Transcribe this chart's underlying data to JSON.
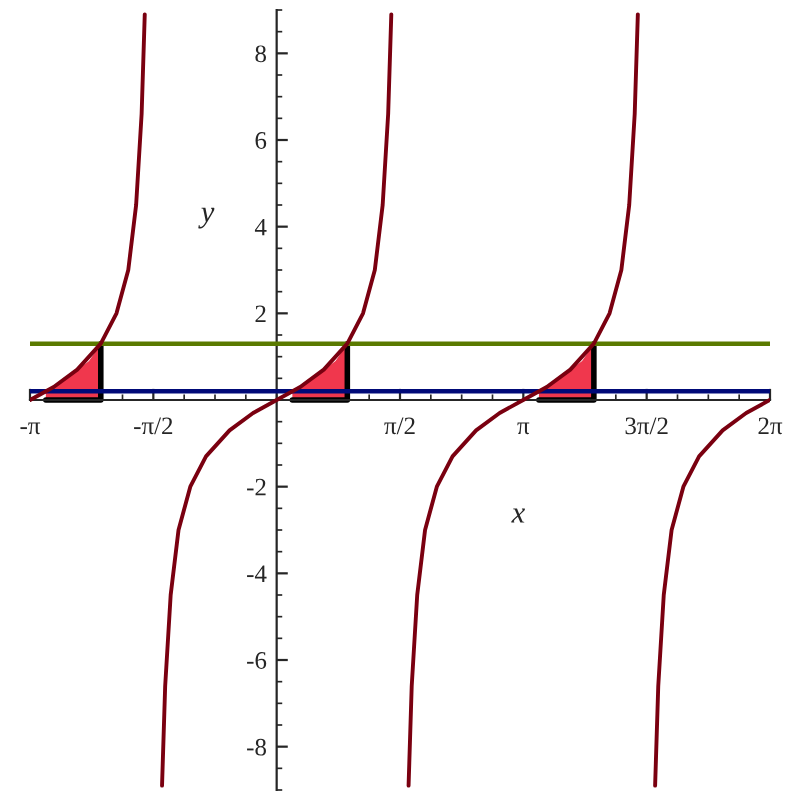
{
  "chart_data": {
    "type": "line",
    "xlabel": "x",
    "ylabel": "y",
    "xlim": [
      -3.1416,
      6.2832
    ],
    "ylim": [
      -9,
      9
    ],
    "xticks": [
      {
        "value": -3.1416,
        "label": "-π"
      },
      {
        "value": -1.5708,
        "label": "-π/2"
      },
      {
        "value": 1.5708,
        "label": "π/2"
      },
      {
        "value": 3.1416,
        "label": "π"
      },
      {
        "value": 4.7124,
        "label": "3π/2"
      },
      {
        "value": 6.2832,
        "label": "2π"
      }
    ],
    "yticks": [
      -8,
      -6,
      -4,
      -2,
      2,
      4,
      6,
      8
    ],
    "grid": false,
    "series": [
      {
        "color": "#7a0010",
        "x": [
          -3.14,
          -2.84,
          -2.54,
          -2.24,
          -2.04,
          -1.89,
          -1.79,
          -1.72,
          -1.68,
          -1.57,
          -1.46,
          -1.42,
          -1.35,
          -1.25,
          -1.1,
          -0.9,
          -0.6,
          -0.3,
          0,
          0.3,
          0.6,
          0.9,
          1.1,
          1.25,
          1.35,
          1.42,
          1.46,
          1.57,
          1.68,
          1.72,
          1.79,
          1.89,
          2.04,
          2.24,
          2.54,
          2.84,
          3.14,
          3.44,
          3.74,
          4.04,
          4.24,
          4.39,
          4.49,
          4.56,
          4.6,
          4.71,
          4.82,
          4.86,
          4.93,
          5.03,
          5.18,
          5.38,
          5.68,
          5.98,
          6.28
        ],
        "values": [
          0,
          0.3,
          0.7,
          1.3,
          2,
          3,
          4.5,
          6.6,
          8.9,
          null,
          -8.9,
          -6.6,
          -4.5,
          -3,
          -2,
          -1.3,
          -0.7,
          -0.3,
          0,
          0.3,
          0.7,
          1.3,
          2,
          3,
          4.5,
          6.6,
          8.9,
          null,
          -8.9,
          -6.6,
          -4.5,
          -3,
          -2,
          -1.3,
          -0.7,
          -0.3,
          0,
          0.3,
          0.7,
          1.3,
          2,
          3,
          4.5,
          6.6,
          8.9,
          null,
          -8.9,
          -6.6,
          -4.5,
          -3,
          -2,
          -1.3,
          -0.7,
          -0.3,
          0
        ]
      },
      {
        "type": "area",
        "color": "#f0374d",
        "x": [
          -2.94,
          -2.74,
          -2.54,
          -2.39,
          -2.24
        ],
        "values": [
          0.2,
          0.4,
          0.7,
          0.9,
          1.3
        ]
      },
      {
        "type": "area",
        "color": "#f0374d",
        "x": [
          0.2,
          0.4,
          0.6,
          0.75,
          0.9
        ],
        "values": [
          0.2,
          0.4,
          0.7,
          0.9,
          1.3
        ]
      },
      {
        "type": "area",
        "color": "#f0374d",
        "x": [
          3.34,
          3.54,
          3.74,
          3.89,
          4.04
        ],
        "values": [
          0.2,
          0.4,
          0.7,
          0.9,
          1.3
        ]
      }
    ],
    "ref_lines": [
      {
        "axis": "y",
        "value": 1.3,
        "color": "#5a7a00"
      },
      {
        "axis": "y",
        "value": 0.2,
        "color": "#000a78"
      }
    ]
  }
}
